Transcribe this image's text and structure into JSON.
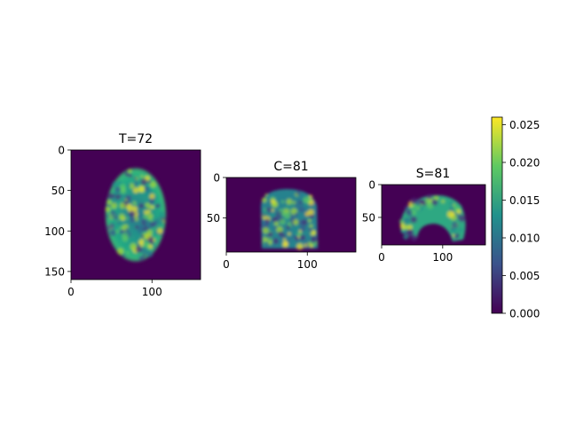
{
  "chart_data": [
    {
      "type": "heatmap",
      "title": "T=72",
      "xlim": [
        0,
        160
      ],
      "ylim": [
        160,
        0
      ],
      "xticks": [
        "0",
        "100"
      ],
      "yticks": [
        "0",
        "50",
        "100",
        "150"
      ],
      "colormap": "viridis"
    },
    {
      "type": "heatmap",
      "title": "C=81",
      "xlim": [
        0,
        160
      ],
      "ylim": [
        92,
        0
      ],
      "xticks": [
        "0",
        "100"
      ],
      "yticks": [
        "0",
        "50"
      ],
      "colormap": "viridis"
    },
    {
      "type": "heatmap",
      "title": "S=81",
      "xlim": [
        0,
        170
      ],
      "ylim": [
        92,
        0
      ],
      "xticks": [
        "0",
        "100"
      ],
      "yticks": [
        "0",
        "50"
      ],
      "colormap": "viridis"
    }
  ],
  "colorbar": {
    "range": [
      0,
      0.026
    ],
    "ticks": [
      "0.000",
      "0.005",
      "0.010",
      "0.015",
      "0.020",
      "0.025"
    ],
    "tick_values": [
      0,
      0.005,
      0.01,
      0.015,
      0.02,
      0.025
    ],
    "colors": [
      "#440154",
      "#3b528b",
      "#21918c",
      "#5ec962",
      "#fde725"
    ]
  }
}
